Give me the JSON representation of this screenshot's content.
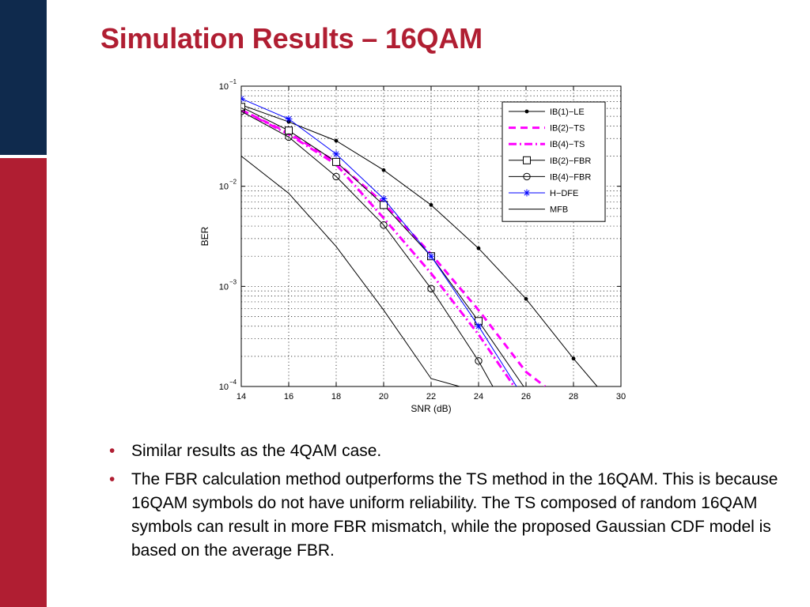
{
  "slide": {
    "title": "Simulation Results – 16QAM",
    "bullets": [
      "Similar results as the 4QAM case.",
      "The FBR calculation method outperforms the TS method in the 16QAM. This is because 16QAM symbols do not have uniform reliability. The TS composed of random 16QAM symbols can result in more FBR mismatch, while the proposed Gaussian CDF model is based on the average FBR."
    ],
    "bullet_glyph": "•",
    "colors": {
      "accent_red": "#b01e32",
      "navy": "#0f2a4d"
    }
  },
  "chart_data": {
    "type": "line",
    "xlabel": "SNR (dB)",
    "ylabel": "BER",
    "xlim": [
      14,
      30
    ],
    "ylim": [
      0.0001,
      0.1
    ],
    "yscale": "log",
    "grid": true,
    "legend_position": "top-right",
    "x_ticks": [
      14,
      16,
      18,
      20,
      22,
      24,
      26,
      28,
      30
    ],
    "y_ticks": [
      {
        "value": 0.1,
        "base": "10",
        "exp": "−1"
      },
      {
        "value": 0.01,
        "base": "10",
        "exp": "−2"
      },
      {
        "value": 0.001,
        "base": "10",
        "exp": "−3"
      },
      {
        "value": 0.0001,
        "base": "10",
        "exp": "−4"
      }
    ],
    "series": [
      {
        "name": "IB(1)−LE",
        "color": "#000000",
        "dash": "solid",
        "width": 1,
        "marker": "dot",
        "x": [
          14,
          16,
          18,
          20,
          22,
          24,
          26,
          28,
          29.0
        ],
        "y": [
          0.065,
          0.044,
          0.0285,
          0.0145,
          0.0065,
          0.0024,
          0.00075,
          0.00019,
          0.0001
        ]
      },
      {
        "name": "IB(2)−TS",
        "color": "#ff00ff",
        "dash": "dashed",
        "width": 3,
        "marker": "none",
        "x": [
          14,
          16,
          18,
          20,
          22,
          24,
          26,
          26.8
        ],
        "y": [
          0.058,
          0.034,
          0.0175,
          0.0068,
          0.0021,
          0.00058,
          0.00014,
          0.0001
        ]
      },
      {
        "name": "IB(4)−TS",
        "color": "#ff00ff",
        "dash": "dashdot",
        "width": 3,
        "marker": "none",
        "x": [
          14,
          16,
          18,
          20,
          22,
          24,
          25.5
        ],
        "y": [
          0.058,
          0.033,
          0.0165,
          0.0048,
          0.00135,
          0.00033,
          0.0001
        ]
      },
      {
        "name": "IB(2)−FBR",
        "color": "#000000",
        "dash": "solid",
        "width": 1,
        "marker": "square",
        "x": [
          14,
          16,
          18,
          20,
          22,
          24,
          25.9
        ],
        "y": [
          0.062,
          0.036,
          0.0175,
          0.0065,
          0.002,
          0.00045,
          0.0001
        ]
      },
      {
        "name": "IB(4)−FBR",
        "color": "#000000",
        "dash": "solid",
        "width": 1,
        "marker": "circle",
        "x": [
          14,
          16,
          18,
          20,
          22,
          24,
          24.6
        ],
        "y": [
          0.056,
          0.031,
          0.0125,
          0.0041,
          0.00095,
          0.00018,
          0.0001
        ]
      },
      {
        "name": "H−DFE",
        "color": "#0000ff",
        "dash": "solid",
        "width": 1,
        "marker": "star",
        "x": [
          14,
          16,
          18,
          20,
          22,
          24,
          25.6
        ],
        "y": [
          0.075,
          0.047,
          0.021,
          0.0075,
          0.002,
          0.0004,
          0.0001
        ]
      },
      {
        "name": "MFB",
        "color": "#000000",
        "dash": "solid",
        "width": 1,
        "marker": "none",
        "x": [
          14,
          16,
          18,
          20,
          22,
          23.2
        ],
        "y": [
          0.02,
          0.0085,
          0.0025,
          0.00058,
          0.00012,
          0.0001
        ]
      }
    ]
  }
}
